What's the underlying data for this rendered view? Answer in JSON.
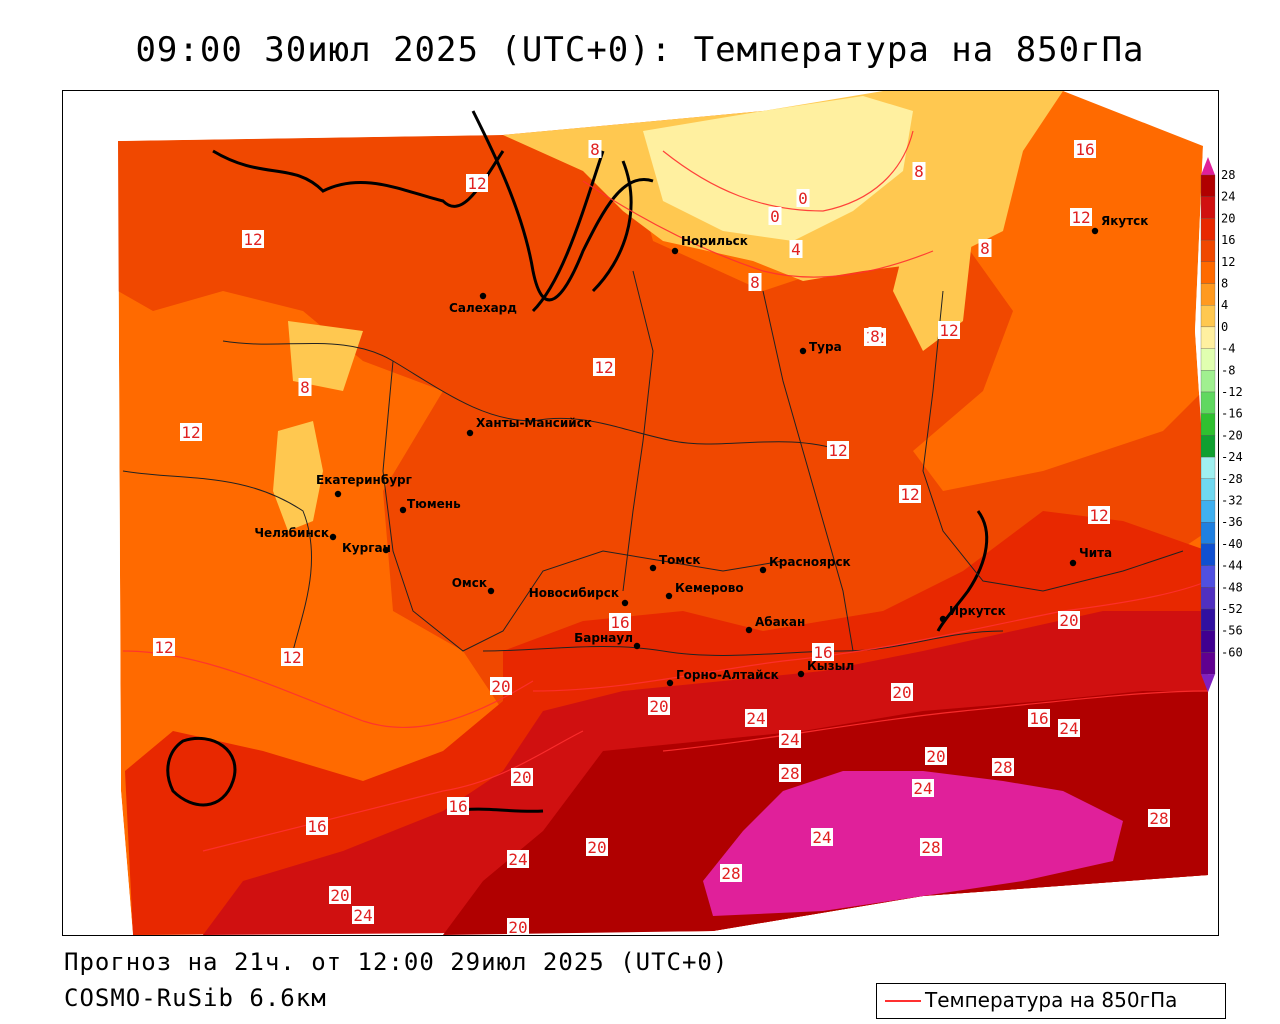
{
  "title": "09:00 30июл 2025 (UTC+0): Температура на 850гПа",
  "footer": {
    "forecast": "Прогноз на 21ч. от 12:00 29июл 2025 (UTC+0)",
    "model": "COSMO-RuSib 6.6км"
  },
  "legend": {
    "line_label": "Температура на 850гПа",
    "line_color": "#ff3030"
  },
  "colorbar": {
    "ticks": [
      "28",
      "24",
      "20",
      "16",
      "12",
      "8",
      "4",
      "0",
      "-4",
      "-8",
      "-12",
      "-16",
      "-20",
      "-24",
      "-28",
      "-32",
      "-36",
      "-40",
      "-44",
      "-48",
      "-52",
      "-56",
      "-60"
    ],
    "colors": [
      "#b00000",
      "#d01010",
      "#e82800",
      "#f04800",
      "#ff6a00",
      "#ff9a20",
      "#ffc850",
      "#fff0a0",
      "#e0ffb0",
      "#a0f090",
      "#60d860",
      "#30c030",
      "#10a030",
      "#a0f0f0",
      "#70d8f0",
      "#40b0f0",
      "#2080e0",
      "#1050d0",
      "#5050e0",
      "#5030c0",
      "#3010a0",
      "#400090",
      "#600090"
    ],
    "top_arrow_color": "#e0209a",
    "bottom_arrow_color": "#8020c0"
  },
  "cities": [
    {
      "name": "Норильск"
    },
    {
      "name": "Салехард"
    },
    {
      "name": "Якутск"
    },
    {
      "name": "Тура"
    },
    {
      "name": "Ханты-Мансийск"
    },
    {
      "name": "Екатеринбург"
    },
    {
      "name": "Тюмень"
    },
    {
      "name": "Челябинск"
    },
    {
      "name": "Курган"
    },
    {
      "name": "Омск"
    },
    {
      "name": "Новосибирск"
    },
    {
      "name": "Томск"
    },
    {
      "name": "Кемерово"
    },
    {
      "name": "Красноярск"
    },
    {
      "name": "Барнаул"
    },
    {
      "name": "Абакан"
    },
    {
      "name": "Горно-Алтайск"
    },
    {
      "name": "Кызыл"
    },
    {
      "name": "Иркутск"
    },
    {
      "name": "Чита"
    }
  ],
  "contour_labels": [
    {
      "v": "8"
    },
    {
      "v": "12"
    },
    {
      "v": "12"
    },
    {
      "v": "0"
    },
    {
      "v": "0"
    },
    {
      "v": "8"
    },
    {
      "v": "16"
    },
    {
      "v": "12"
    },
    {
      "v": "8"
    },
    {
      "v": "4"
    },
    {
      "v": "8"
    },
    {
      "v": "12"
    },
    {
      "v": "12"
    },
    {
      "v": "8"
    },
    {
      "v": "8"
    },
    {
      "v": "12"
    },
    {
      "v": "12"
    },
    {
      "v": "12"
    },
    {
      "v": "12"
    },
    {
      "v": "12"
    },
    {
      "v": "16"
    },
    {
      "v": "16"
    },
    {
      "v": "12"
    },
    {
      "v": "12"
    },
    {
      "v": "20"
    },
    {
      "v": "20"
    },
    {
      "v": "20"
    },
    {
      "v": "24"
    },
    {
      "v": "20"
    },
    {
      "v": "16"
    },
    {
      "v": "24"
    },
    {
      "v": "20"
    },
    {
      "v": "28"
    },
    {
      "v": "20"
    },
    {
      "v": "28"
    },
    {
      "v": "24"
    },
    {
      "v": "24"
    },
    {
      "v": "16"
    },
    {
      "v": "16"
    },
    {
      "v": "24"
    },
    {
      "v": "20"
    },
    {
      "v": "24"
    },
    {
      "v": "28"
    },
    {
      "v": "28"
    },
    {
      "v": "28"
    },
    {
      "v": "20"
    },
    {
      "v": "24"
    },
    {
      "v": "20"
    },
    {
      "v": "28"
    }
  ]
}
